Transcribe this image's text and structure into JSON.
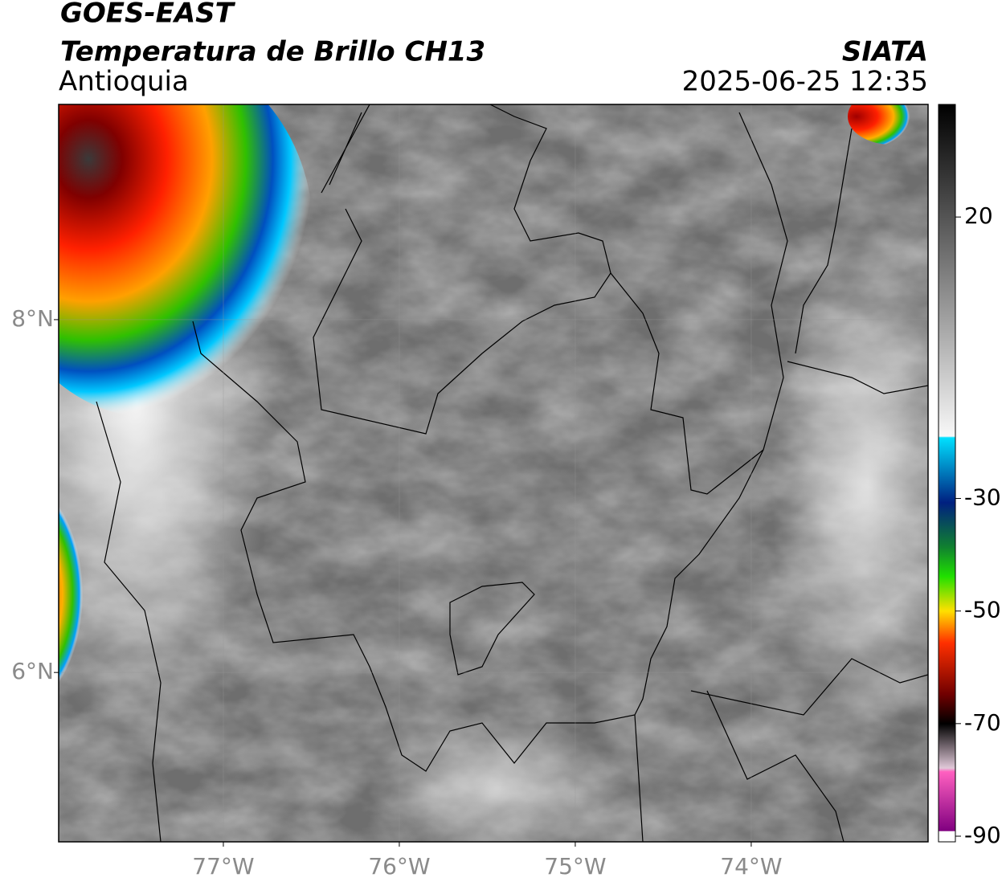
{
  "header": {
    "title": "GOES-EAST",
    "subtitle": "Temperatura de Brillo CH13",
    "region": "Antioquia",
    "source": "SIATA",
    "datetime": "2025-06-25 12:35"
  },
  "map": {
    "xlim": [
      -77.936,
      -72.995
    ],
    "ylim": [
      5.04,
      9.22
    ],
    "xticks": [
      {
        "value": -77,
        "label": "77°W"
      },
      {
        "value": -76,
        "label": "76°W"
      },
      {
        "value": -75,
        "label": "75°W"
      },
      {
        "value": -74,
        "label": "74°W"
      }
    ],
    "yticks": [
      {
        "value": 8,
        "label": "8°N"
      },
      {
        "value": 6,
        "label": "6°N"
      }
    ],
    "grid": true
  },
  "colorbar": {
    "lim": [
      -91,
      40
    ],
    "ticks": [
      20,
      -30,
      -50,
      -70,
      -90
    ]
  }
}
